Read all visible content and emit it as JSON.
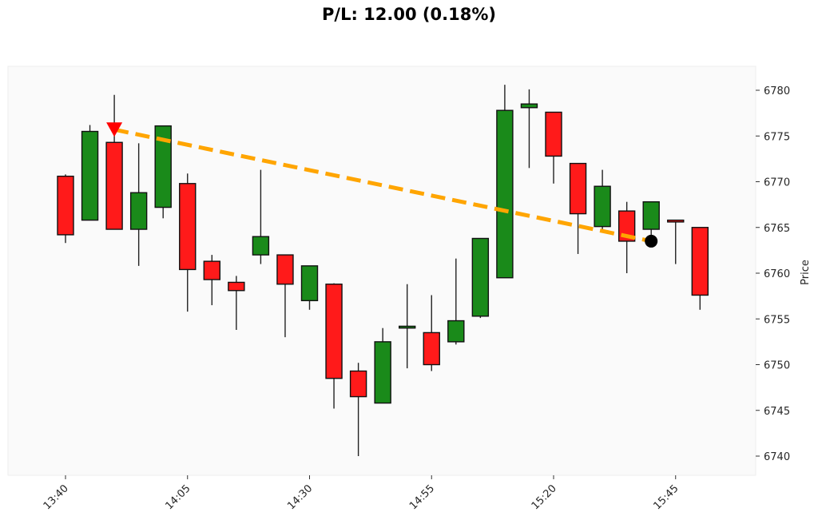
{
  "title": "P/L: 12.00 (0.18%)",
  "colors": {
    "up": "#1a8a1a",
    "down": "#ff1a1a",
    "outline": "#111111",
    "trendline": "#ffa500",
    "entry_marker": "#ff0000",
    "exit_marker": "#000000",
    "plot_bg": "#fafafa",
    "plot_border": "#eeeeee"
  },
  "chart_data": {
    "type": "candlestick",
    "title": "P/L: 12.00 (0.18%)",
    "xlabel": "",
    "ylabel": "Price",
    "ylim": [
      6738,
      6783
    ],
    "yticks": [
      6740,
      6745,
      6750,
      6755,
      6760,
      6765,
      6770,
      6775,
      6780
    ],
    "xtick_labels": [
      "13:40",
      "14:05",
      "14:30",
      "14:55",
      "15:20",
      "15:45"
    ],
    "xtick_indices": [
      0,
      5,
      10,
      15,
      20,
      25
    ],
    "grid": false,
    "legend": null,
    "candles": [
      {
        "t": "13:40",
        "o": 6770.6,
        "h": 6770.8,
        "l": 6763.3,
        "c": 6764.2
      },
      {
        "t": "13:45",
        "o": 6765.8,
        "h": 6776.2,
        "l": 6765.8,
        "c": 6775.5
      },
      {
        "t": "13:50",
        "o": 6774.3,
        "h": 6779.5,
        "l": 6764.8,
        "c": 6764.8
      },
      {
        "t": "13:55",
        "o": 6764.8,
        "h": 6774.2,
        "l": 6760.8,
        "c": 6768.8
      },
      {
        "t": "14:00",
        "o": 6767.2,
        "h": 6776.1,
        "l": 6766.0,
        "c": 6776.1
      },
      {
        "t": "14:05",
        "o": 6769.8,
        "h": 6770.9,
        "l": 6755.8,
        "c": 6760.4
      },
      {
        "t": "14:10",
        "o": 6761.3,
        "h": 6762.0,
        "l": 6756.5,
        "c": 6759.3
      },
      {
        "t": "14:15",
        "o": 6759.0,
        "h": 6759.7,
        "l": 6753.8,
        "c": 6758.1
      },
      {
        "t": "14:20",
        "o": 6762.0,
        "h": 6771.3,
        "l": 6761.0,
        "c": 6764.0
      },
      {
        "t": "14:25",
        "o": 6762.0,
        "h": 6762.0,
        "l": 6753.0,
        "c": 6758.8
      },
      {
        "t": "14:30",
        "o": 6757.0,
        "h": 6760.8,
        "l": 6756.0,
        "c": 6760.8
      },
      {
        "t": "14:35",
        "o": 6758.8,
        "h": 6758.9,
        "l": 6745.2,
        "c": 6748.5
      },
      {
        "t": "14:40",
        "o": 6749.3,
        "h": 6750.2,
        "l": 6740.0,
        "c": 6746.5
      },
      {
        "t": "14:45",
        "o": 6745.8,
        "h": 6754.0,
        "l": 6745.8,
        "c": 6752.5
      },
      {
        "t": "14:50",
        "o": 6754.0,
        "h": 6758.8,
        "l": 6749.6,
        "c": 6754.2
      },
      {
        "t": "14:55",
        "o": 6753.5,
        "h": 6757.6,
        "l": 6749.3,
        "c": 6750.0
      },
      {
        "t": "15:00",
        "o": 6752.5,
        "h": 6761.6,
        "l": 6752.2,
        "c": 6754.8
      },
      {
        "t": "15:05",
        "o": 6755.3,
        "h": 6763.8,
        "l": 6755.1,
        "c": 6763.8
      },
      {
        "t": "15:10",
        "o": 6759.5,
        "h": 6780.6,
        "l": 6759.5,
        "c": 6777.8
      },
      {
        "t": "15:15",
        "o": 6778.1,
        "h": 6780.1,
        "l": 6771.5,
        "c": 6778.5
      },
      {
        "t": "15:20",
        "o": 6777.6,
        "h": 6777.6,
        "l": 6769.8,
        "c": 6772.8
      },
      {
        "t": "15:25",
        "o": 6772.0,
        "h": 6772.0,
        "l": 6762.1,
        "c": 6766.5
      },
      {
        "t": "15:30",
        "o": 6765.1,
        "h": 6771.3,
        "l": 6764.8,
        "c": 6769.5
      },
      {
        "t": "15:35",
        "o": 6766.8,
        "h": 6767.8,
        "l": 6760.0,
        "c": 6763.5
      },
      {
        "t": "15:40",
        "o": 6764.8,
        "h": 6767.8,
        "l": 6763.7,
        "c": 6767.8
      },
      {
        "t": "15:45",
        "o": 6765.8,
        "h": 6765.8,
        "l": 6761.0,
        "c": 6765.6
      },
      {
        "t": "15:50",
        "o": 6765.0,
        "h": 6765.0,
        "l": 6756.0,
        "c": 6757.6
      }
    ],
    "annotations": [
      {
        "type": "entry_marker",
        "shape": "down-triangle",
        "index": 2,
        "price": 6775.7
      },
      {
        "type": "exit_marker",
        "shape": "circle",
        "index": 24,
        "price": 6763.5
      },
      {
        "type": "trade_line",
        "style": "dashed",
        "from": {
          "index": 2,
          "price": 6775.7
        },
        "to": {
          "index": 24,
          "price": 6763.5
        }
      }
    ],
    "pnl": {
      "value": 12.0,
      "percent": 0.18
    }
  },
  "axes": {
    "y_label": "Price"
  }
}
